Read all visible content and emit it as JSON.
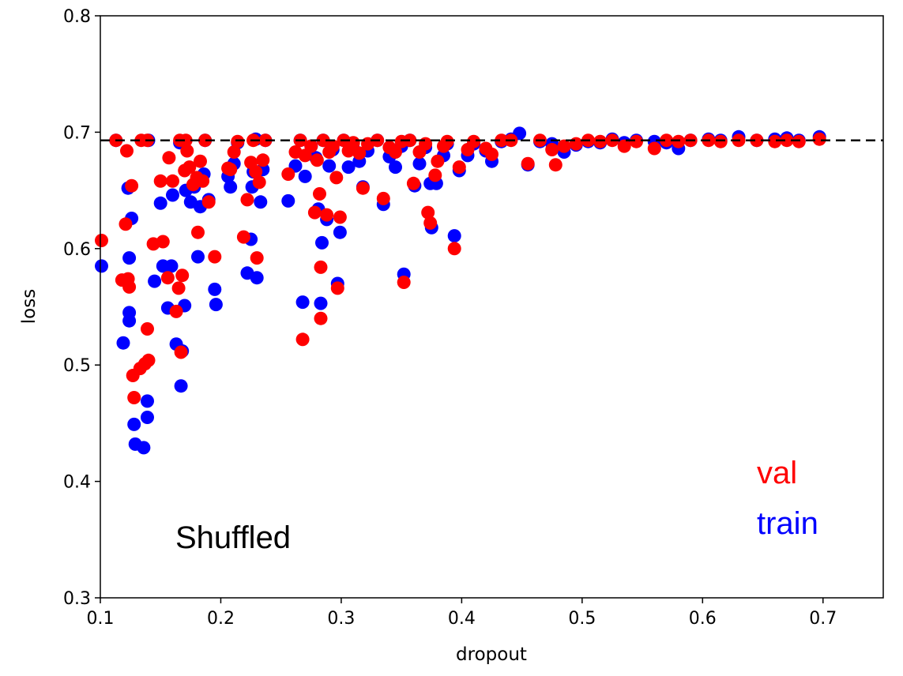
{
  "chart_data": {
    "type": "scatter",
    "title": "",
    "xlabel": "dropout",
    "ylabel": "loss",
    "xlim": [
      0.1,
      0.75
    ],
    "ylim": [
      0.3,
      0.8
    ],
    "xticks": [
      "0.1",
      "0.2",
      "0.3",
      "0.4",
      "0.5",
      "0.6",
      "0.7"
    ],
    "yticks": [
      "0.3",
      "0.4",
      "0.5",
      "0.6",
      "0.7",
      "0.8"
    ],
    "grid": false,
    "reference_line": {
      "y": 0.693,
      "style": "dashed",
      "color": "#000000"
    },
    "annotations": {
      "panel_label": "Shuffled",
      "legend_val": "val",
      "legend_train": "train"
    },
    "colors": {
      "train": "#0000ff",
      "val": "#ff0000",
      "text": "#000000"
    },
    "series": [
      {
        "name": "train",
        "points": [
          [
            0.101,
            0.585
          ],
          [
            0.113,
            0.693
          ],
          [
            0.119,
            0.519
          ],
          [
            0.123,
            0.652
          ],
          [
            0.124,
            0.538
          ],
          [
            0.124,
            0.545
          ],
          [
            0.124,
            0.592
          ],
          [
            0.126,
            0.626
          ],
          [
            0.128,
            0.449
          ],
          [
            0.129,
            0.432
          ],
          [
            0.136,
            0.429
          ],
          [
            0.139,
            0.469
          ],
          [
            0.139,
            0.455
          ],
          [
            0.14,
            0.693
          ],
          [
            0.145,
            0.572
          ],
          [
            0.15,
            0.639
          ],
          [
            0.152,
            0.585
          ],
          [
            0.156,
            0.549
          ],
          [
            0.159,
            0.585
          ],
          [
            0.16,
            0.646
          ],
          [
            0.163,
            0.518
          ],
          [
            0.166,
            0.691
          ],
          [
            0.167,
            0.482
          ],
          [
            0.168,
            0.512
          ],
          [
            0.17,
            0.551
          ],
          [
            0.171,
            0.65
          ],
          [
            0.175,
            0.64
          ],
          [
            0.178,
            0.653
          ],
          [
            0.181,
            0.593
          ],
          [
            0.183,
            0.636
          ],
          [
            0.186,
            0.664
          ],
          [
            0.187,
            0.693
          ],
          [
            0.19,
            0.642
          ],
          [
            0.195,
            0.565
          ],
          [
            0.196,
            0.552
          ],
          [
            0.206,
            0.662
          ],
          [
            0.208,
            0.653
          ],
          [
            0.211,
            0.673
          ],
          [
            0.214,
            0.691
          ],
          [
            0.222,
            0.579
          ],
          [
            0.225,
            0.608
          ],
          [
            0.226,
            0.653
          ],
          [
            0.227,
            0.666
          ],
          [
            0.229,
            0.694
          ],
          [
            0.23,
            0.575
          ],
          [
            0.233,
            0.64
          ],
          [
            0.235,
            0.668
          ],
          [
            0.237,
            0.693
          ],
          [
            0.256,
            0.641
          ],
          [
            0.262,
            0.671
          ],
          [
            0.266,
            0.693
          ],
          [
            0.268,
            0.554
          ],
          [
            0.27,
            0.662
          ],
          [
            0.275,
            0.688
          ],
          [
            0.279,
            0.678
          ],
          [
            0.281,
            0.634
          ],
          [
            0.283,
            0.553
          ],
          [
            0.284,
            0.605
          ],
          [
            0.285,
            0.693
          ],
          [
            0.288,
            0.625
          ],
          [
            0.29,
            0.671
          ],
          [
            0.293,
            0.685
          ],
          [
            0.297,
            0.57
          ],
          [
            0.299,
            0.614
          ],
          [
            0.302,
            0.693
          ],
          [
            0.306,
            0.67
          ],
          [
            0.31,
            0.686
          ],
          [
            0.315,
            0.675
          ],
          [
            0.318,
            0.653
          ],
          [
            0.322,
            0.684
          ],
          [
            0.33,
            0.693
          ],
          [
            0.335,
            0.638
          ],
          [
            0.34,
            0.679
          ],
          [
            0.345,
            0.67
          ],
          [
            0.35,
            0.688
          ],
          [
            0.352,
            0.578
          ],
          [
            0.357,
            0.693
          ],
          [
            0.361,
            0.654
          ],
          [
            0.365,
            0.673
          ],
          [
            0.37,
            0.687
          ],
          [
            0.374,
            0.656
          ],
          [
            0.375,
            0.618
          ],
          [
            0.379,
            0.656
          ],
          [
            0.385,
            0.68
          ],
          [
            0.388,
            0.69
          ],
          [
            0.394,
            0.611
          ],
          [
            0.398,
            0.667
          ],
          [
            0.405,
            0.68
          ],
          [
            0.41,
            0.69
          ],
          [
            0.42,
            0.684
          ],
          [
            0.425,
            0.675
          ],
          [
            0.433,
            0.692
          ],
          [
            0.441,
            0.694
          ],
          [
            0.448,
            0.699
          ],
          [
            0.455,
            0.672
          ],
          [
            0.465,
            0.692
          ],
          [
            0.475,
            0.69
          ],
          [
            0.485,
            0.683
          ],
          [
            0.495,
            0.689
          ],
          [
            0.505,
            0.692
          ],
          [
            0.515,
            0.691
          ],
          [
            0.525,
            0.694
          ],
          [
            0.535,
            0.691
          ],
          [
            0.545,
            0.693
          ],
          [
            0.56,
            0.692
          ],
          [
            0.57,
            0.691
          ],
          [
            0.58,
            0.686
          ],
          [
            0.59,
            0.693
          ],
          [
            0.605,
            0.694
          ],
          [
            0.615,
            0.693
          ],
          [
            0.63,
            0.696
          ],
          [
            0.645,
            0.693
          ],
          [
            0.66,
            0.694
          ],
          [
            0.67,
            0.695
          ],
          [
            0.68,
            0.693
          ],
          [
            0.697,
            0.696
          ]
        ]
      },
      {
        "name": "val",
        "points": [
          [
            0.101,
            0.607
          ],
          [
            0.113,
            0.693
          ],
          [
            0.118,
            0.573
          ],
          [
            0.121,
            0.621
          ],
          [
            0.122,
            0.684
          ],
          [
            0.123,
            0.574
          ],
          [
            0.124,
            0.567
          ],
          [
            0.126,
            0.654
          ],
          [
            0.127,
            0.491
          ],
          [
            0.128,
            0.472
          ],
          [
            0.133,
            0.497
          ],
          [
            0.134,
            0.693
          ],
          [
            0.137,
            0.501
          ],
          [
            0.139,
            0.693
          ],
          [
            0.139,
            0.531
          ],
          [
            0.14,
            0.504
          ],
          [
            0.144,
            0.604
          ],
          [
            0.15,
            0.658
          ],
          [
            0.152,
            0.606
          ],
          [
            0.156,
            0.575
          ],
          [
            0.157,
            0.678
          ],
          [
            0.16,
            0.658
          ],
          [
            0.163,
            0.546
          ],
          [
            0.165,
            0.566
          ],
          [
            0.166,
            0.693
          ],
          [
            0.167,
            0.511
          ],
          [
            0.168,
            0.577
          ],
          [
            0.17,
            0.667
          ],
          [
            0.171,
            0.693
          ],
          [
            0.172,
            0.684
          ],
          [
            0.174,
            0.67
          ],
          [
            0.177,
            0.655
          ],
          [
            0.18,
            0.661
          ],
          [
            0.181,
            0.614
          ],
          [
            0.183,
            0.675
          ],
          [
            0.185,
            0.658
          ],
          [
            0.187,
            0.693
          ],
          [
            0.19,
            0.64
          ],
          [
            0.195,
            0.593
          ],
          [
            0.206,
            0.669
          ],
          [
            0.208,
            0.668
          ],
          [
            0.211,
            0.683
          ],
          [
            0.214,
            0.692
          ],
          [
            0.219,
            0.61
          ],
          [
            0.222,
            0.642
          ],
          [
            0.225,
            0.674
          ],
          [
            0.227,
            0.693
          ],
          [
            0.229,
            0.666
          ],
          [
            0.23,
            0.592
          ],
          [
            0.232,
            0.657
          ],
          [
            0.235,
            0.676
          ],
          [
            0.237,
            0.693
          ],
          [
            0.256,
            0.664
          ],
          [
            0.262,
            0.683
          ],
          [
            0.266,
            0.693
          ],
          [
            0.268,
            0.522
          ],
          [
            0.27,
            0.68
          ],
          [
            0.275,
            0.688
          ],
          [
            0.278,
            0.631
          ],
          [
            0.28,
            0.676
          ],
          [
            0.282,
            0.647
          ],
          [
            0.283,
            0.584
          ],
          [
            0.283,
            0.54
          ],
          [
            0.285,
            0.693
          ],
          [
            0.288,
            0.629
          ],
          [
            0.29,
            0.683
          ],
          [
            0.293,
            0.688
          ],
          [
            0.296,
            0.661
          ],
          [
            0.297,
            0.566
          ],
          [
            0.299,
            0.627
          ],
          [
            0.302,
            0.693
          ],
          [
            0.306,
            0.684
          ],
          [
            0.31,
            0.691
          ],
          [
            0.315,
            0.682
          ],
          [
            0.318,
            0.652
          ],
          [
            0.322,
            0.69
          ],
          [
            0.33,
            0.693
          ],
          [
            0.335,
            0.643
          ],
          [
            0.34,
            0.687
          ],
          [
            0.345,
            0.683
          ],
          [
            0.35,
            0.692
          ],
          [
            0.352,
            0.571
          ],
          [
            0.357,
            0.693
          ],
          [
            0.36,
            0.656
          ],
          [
            0.365,
            0.683
          ],
          [
            0.37,
            0.69
          ],
          [
            0.372,
            0.631
          ],
          [
            0.374,
            0.622
          ],
          [
            0.378,
            0.663
          ],
          [
            0.38,
            0.675
          ],
          [
            0.385,
            0.688
          ],
          [
            0.388,
            0.692
          ],
          [
            0.394,
            0.6
          ],
          [
            0.398,
            0.67
          ],
          [
            0.405,
            0.685
          ],
          [
            0.41,
            0.692
          ],
          [
            0.42,
            0.686
          ],
          [
            0.425,
            0.681
          ],
          [
            0.433,
            0.693
          ],
          [
            0.441,
            0.693
          ],
          [
            0.455,
            0.673
          ],
          [
            0.465,
            0.693
          ],
          [
            0.475,
            0.685
          ],
          [
            0.478,
            0.672
          ],
          [
            0.485,
            0.688
          ],
          [
            0.495,
            0.69
          ],
          [
            0.505,
            0.693
          ],
          [
            0.515,
            0.692
          ],
          [
            0.525,
            0.693
          ],
          [
            0.535,
            0.688
          ],
          [
            0.545,
            0.692
          ],
          [
            0.56,
            0.686
          ],
          [
            0.57,
            0.693
          ],
          [
            0.58,
            0.692
          ],
          [
            0.59,
            0.693
          ],
          [
            0.605,
            0.693
          ],
          [
            0.615,
            0.692
          ],
          [
            0.63,
            0.693
          ],
          [
            0.645,
            0.693
          ],
          [
            0.66,
            0.692
          ],
          [
            0.67,
            0.693
          ],
          [
            0.68,
            0.692
          ],
          [
            0.697,
            0.694
          ]
        ]
      }
    ]
  }
}
